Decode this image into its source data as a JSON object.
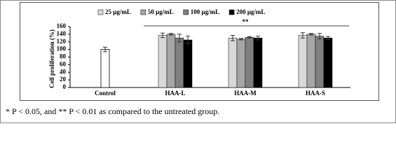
{
  "chart_data": {
    "type": "bar",
    "legend": "top",
    "y_label": "Cell proliferation (%)",
    "categories": [
      "Control",
      "HAA-L",
      "HAA-M",
      "HAA-S"
    ],
    "control": {
      "value": 100,
      "error": 6,
      "color": "#ffffff"
    },
    "series": [
      {
        "name": "25 μg/mL",
        "color": "#d9d9d9",
        "values": [
          null,
          137,
          130,
          137
        ],
        "errors": [
          null,
          6,
          7,
          7
        ]
      },
      {
        "name": "50 μg/mL",
        "color": "#a6a6a6",
        "values": [
          null,
          140,
          127,
          140
        ],
        "errors": [
          null,
          2,
          2,
          2
        ]
      },
      {
        "name": "100 μg/mL",
        "color": "#7f7f7f",
        "values": [
          null,
          130,
          132,
          135
        ],
        "errors": [
          null,
          10,
          2,
          7
        ]
      },
      {
        "name": "200 μg/mL",
        "color": "#000000",
        "values": [
          null,
          125,
          130,
          130
        ],
        "errors": [
          null,
          10,
          5,
          4
        ]
      }
    ],
    "annotation": "**",
    "ylim": [
      0,
      160
    ],
    "yticks": [
      0,
      20,
      40,
      60,
      80,
      100,
      120,
      140,
      160
    ]
  },
  "caption": "* P < 0.05, and ** P < 0.01 as compared to the untreated group."
}
